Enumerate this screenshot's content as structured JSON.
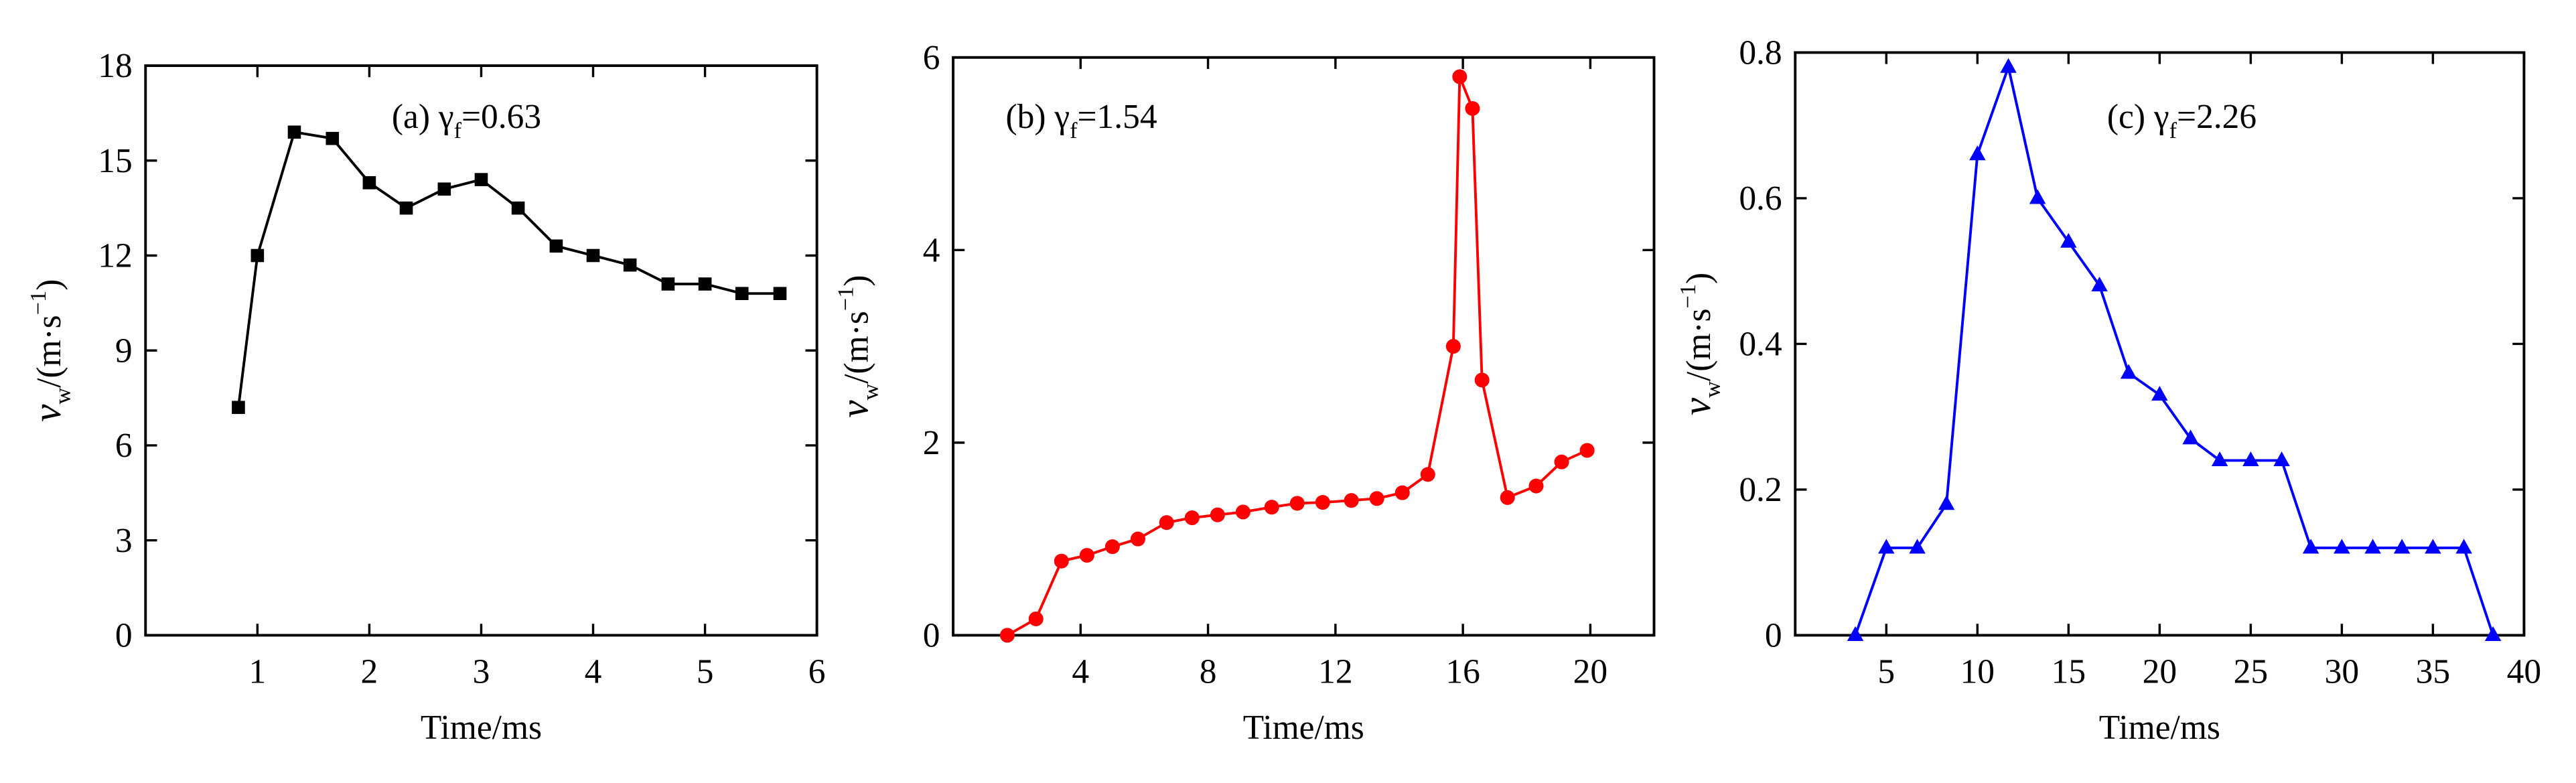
{
  "chart_data": [
    {
      "type": "line",
      "marker": "square",
      "color": "#000000",
      "annotation": {
        "prefix": "(a) γ",
        "sub": "f",
        "suffix": "=0.63"
      },
      "xlabel": "Time/ms",
      "ylabel": {
        "main": "v",
        "sub": "w",
        "rest": "/(m·s",
        "sup": "−1",
        "end": ")"
      },
      "xlim": [
        0,
        6
      ],
      "xticks": [
        1,
        2,
        3,
        4,
        5,
        6
      ],
      "ylim": [
        0,
        18
      ],
      "yticks": [
        0,
        3,
        6,
        9,
        12,
        15,
        18
      ],
      "x": [
        0.83,
        1.0,
        1.33,
        1.67,
        2.0,
        2.33,
        2.67,
        3.0,
        3.33,
        3.67,
        4.0,
        4.33,
        4.67,
        5.0,
        5.33,
        5.67
      ],
      "values": [
        7.2,
        12.0,
        15.9,
        15.7,
        14.3,
        13.5,
        14.1,
        14.4,
        13.5,
        12.3,
        12.0,
        11.7,
        11.1,
        11.1,
        10.8,
        10.8
      ]
    },
    {
      "type": "line",
      "marker": "circle",
      "color": "#ff0000",
      "annotation": {
        "prefix": "(b) γ",
        "sub": "f",
        "suffix": "=1.54"
      },
      "xlabel": "Time/ms",
      "ylabel": {
        "main": "v",
        "sub": "w",
        "rest": "/(m·s",
        "sup": "−1",
        "end": ")"
      },
      "xlim": [
        0,
        22
      ],
      "xticks": [
        4,
        8,
        12,
        16,
        20
      ],
      "ylim": [
        0,
        6
      ],
      "yticks": [
        0,
        2,
        4,
        6
      ],
      "x": [
        1.7,
        2.6,
        3.4,
        4.2,
        5.0,
        5.8,
        6.7,
        7.5,
        8.3,
        9.1,
        10.0,
        10.8,
        11.6,
        12.5,
        13.3,
        14.1,
        14.9,
        15.7,
        15.9,
        16.3,
        16.6,
        17.4,
        18.3,
        19.1,
        19.9
      ],
      "values": [
        0,
        0.17,
        0.77,
        0.83,
        0.92,
        1.0,
        1.17,
        1.22,
        1.25,
        1.28,
        1.33,
        1.37,
        1.38,
        1.4,
        1.42,
        1.48,
        1.67,
        3.0,
        5.8,
        5.47,
        2.65,
        1.43,
        1.55,
        1.8,
        1.92
      ]
    },
    {
      "type": "line",
      "marker": "triangle",
      "color": "#0000ff",
      "annotation": {
        "prefix": "(c) γ",
        "sub": "f",
        "suffix": "=2.26"
      },
      "xlabel": "Time/ms",
      "ylabel": {
        "main": "v",
        "sub": "w",
        "rest": "/(m·s",
        "sup": "−1",
        "end": ")"
      },
      "xlim": [
        0,
        40
      ],
      "xticks": [
        5,
        10,
        15,
        20,
        25,
        30,
        35,
        40
      ],
      "ylim": [
        0,
        0.8
      ],
      "yticks": [
        0,
        0.2,
        0.4,
        0.6,
        0.8
      ],
      "x": [
        3.3,
        5.0,
        6.7,
        8.3,
        10.0,
        11.7,
        13.3,
        15.0,
        16.7,
        18.3,
        20.0,
        21.7,
        23.3,
        25.0,
        26.7,
        28.3,
        30.0,
        31.7,
        33.3,
        35.0,
        36.7,
        38.3
      ],
      "values": [
        0,
        0.12,
        0.12,
        0.18,
        0.66,
        0.78,
        0.6,
        0.54,
        0.48,
        0.36,
        0.33,
        0.27,
        0.24,
        0.24,
        0.24,
        0.12,
        0.12,
        0.12,
        0.12,
        0.12,
        0.12,
        0
      ]
    }
  ]
}
